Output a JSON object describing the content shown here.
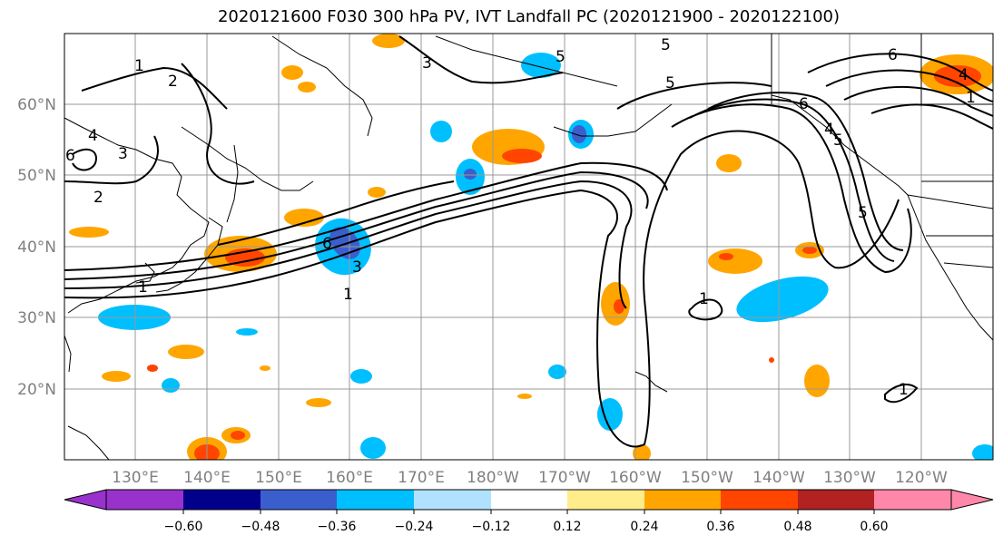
{
  "title": "2020121600 F030 300 hPa PV, IVT Landfall PC (2020121900 - 2020122100)",
  "lon_labels": [
    "130°E",
    "140°E",
    "150°E",
    "160°E",
    "170°E",
    "180°W",
    "170°W",
    "160°W",
    "150°W",
    "140°W",
    "130°W",
    "120°W"
  ],
  "lat_labels": [
    "60°N",
    "50°N",
    "40°N",
    "30°N",
    "20°N"
  ],
  "colorbar": {
    "tick_labels": [
      "−0.60",
      "−0.48",
      "−0.36",
      "−0.24",
      "−0.12",
      "0.12",
      "0.24",
      "0.36",
      "0.48",
      "0.60"
    ],
    "colors": [
      "#9932CC",
      "#00008B",
      "#3A5FCD",
      "#00BFFF",
      "#B0E2FF",
      "#FFFFFF",
      "#FFEC8B",
      "#FFA500",
      "#FF4500",
      "#B22222",
      "#FF88AA"
    ]
  },
  "contour_labels": [
    "1",
    "2",
    "3",
    "4",
    "5",
    "6",
    "1",
    "2",
    "3",
    "4",
    "5",
    "6",
    "1",
    "3",
    "5",
    "6",
    "6",
    "5",
    "4",
    "1",
    "5",
    "1",
    "1"
  ]
}
